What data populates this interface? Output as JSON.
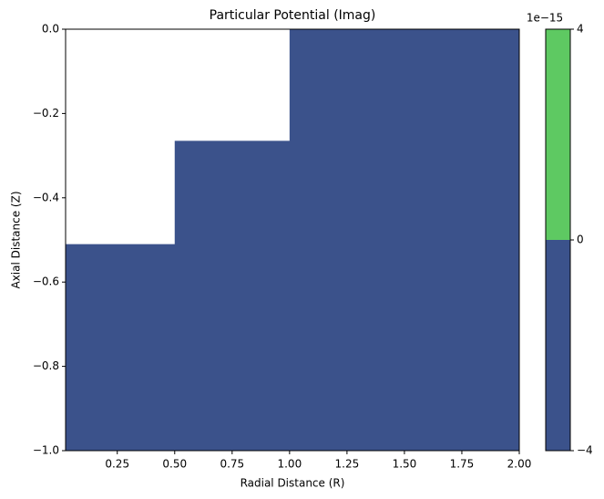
{
  "chart_data": {
    "type": "contourf",
    "title": "Particular Potential (Imag)",
    "x_label": "Radial Distance (R)",
    "y_label": "Axial Distance (Z)",
    "xlim": [
      0.025,
      2.0
    ],
    "ylim": [
      -1.0,
      0.0
    ],
    "xticks": [
      0.25,
      {
        "value": 0.5,
        "label": "0.50"
      },
      0.75,
      {
        "value": 1.0,
        "label": "1.00"
      },
      1.25,
      {
        "value": 1.5,
        "label": "1.50"
      },
      1.75,
      {
        "value": 2.0,
        "label": "2.00"
      }
    ],
    "yticks": [
      {
        "value": 0,
        "label": "0.0"
      },
      {
        "value": -0.2,
        "label": "−0.2"
      },
      {
        "value": -0.4,
        "label": "−0.4"
      },
      {
        "value": -0.6,
        "label": "−0.6"
      },
      {
        "value": -0.8,
        "label": "−0.8"
      },
      {
        "value": -1.0,
        "label": "−1.0"
      }
    ],
    "colors": [
      "#3b528b",
      "#5ec962"
    ],
    "colorbar_ticks": [
      {
        "value": -4e-15,
        "label": "−4"
      },
      {
        "value": 0,
        "label": "0"
      },
      {
        "value": 4e-15,
        "label": "4"
      }
    ],
    "colorbar_offset_label": "1e−15",
    "region": {
      "x": [
        0.025,
        2.0,
        2.0,
        1.0,
        1.0,
        0.5,
        0.5,
        0.025
      ],
      "y": [
        -1.0,
        -1.0,
        0.0,
        0.0,
        -0.265,
        -0.265,
        -0.51,
        -0.51
      ]
    }
  }
}
